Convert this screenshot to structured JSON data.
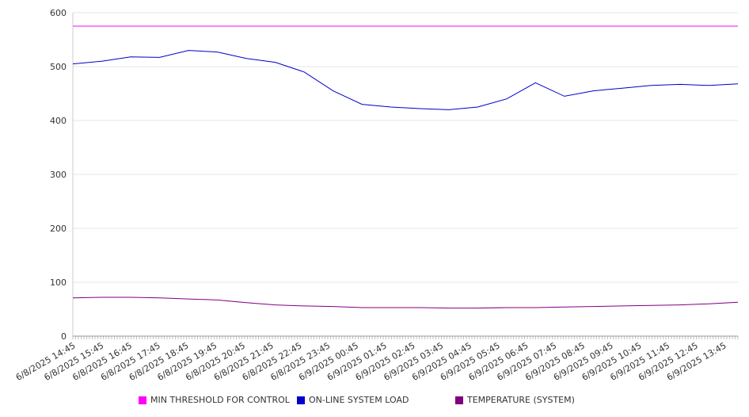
{
  "chart_data": {
    "type": "line",
    "ylim": [
      0,
      600
    ],
    "yticks": [
      "0",
      "100",
      "200",
      "300",
      "400",
      "500",
      "600"
    ],
    "xticks": [
      "6/8/2025 14:45",
      "6/8/2025 15:45",
      "6/8/2025 16:45",
      "6/8/2025 17:45",
      "6/8/2025 18:45",
      "6/8/2025 19:45",
      "6/8/2025 20:45",
      "6/8/2025 21:45",
      "6/8/2025 22:45",
      "6/8/2025 23:45",
      "6/9/2025 00:45",
      "6/9/2025 01:45",
      "6/9/2025 02:45",
      "6/9/2025 03:45",
      "6/9/2025 04:45",
      "6/9/2025 05:45",
      "6/9/2025 06:45",
      "6/9/2025 07:45",
      "6/9/2025 08:45",
      "6/9/2025 09:45",
      "6/9/2025 10:45",
      "6/9/2025 11:45",
      "6/9/2025 12:45",
      "6/9/2025 13:45"
    ],
    "grid": true,
    "legend_position": "bottom",
    "series": [
      {
        "name": "MIN THRESHOLD FOR CONTROL",
        "color": "#ff00ff",
        "values": [
          575,
          575,
          575,
          575,
          575,
          575,
          575,
          575,
          575,
          575,
          575,
          575,
          575,
          575,
          575,
          575,
          575,
          575,
          575,
          575,
          575,
          575,
          575,
          575
        ]
      },
      {
        "name": "ON-LINE SYSTEM LOAD",
        "color": "#0000cc",
        "values": [
          505,
          510,
          518,
          517,
          530,
          527,
          515,
          508,
          490,
          455,
          430,
          425,
          422,
          420,
          425,
          440,
          470,
          445,
          455,
          460,
          465,
          467,
          465,
          468
        ]
      },
      {
        "name": "TEMPERATURE (SYSTEM)",
        "color": "#800080",
        "values": [
          71,
          72,
          72,
          71,
          69,
          67,
          62,
          58,
          56,
          55,
          53,
          53,
          53,
          52,
          52,
          53,
          53,
          54,
          55,
          56,
          57,
          58,
          60,
          63
        ]
      }
    ]
  }
}
